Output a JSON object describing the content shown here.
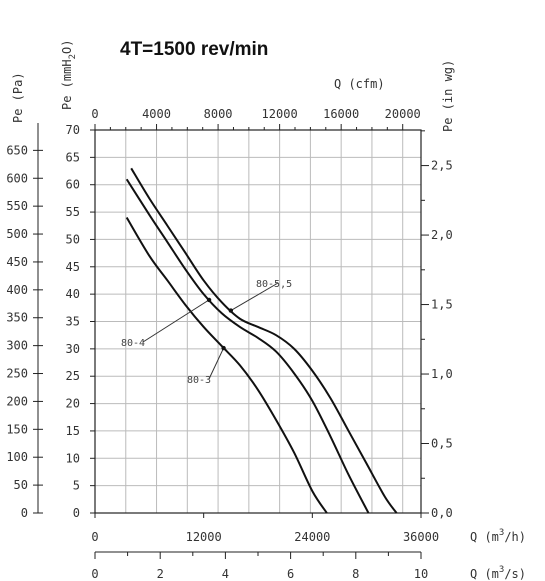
{
  "chart_data": {
    "type": "line",
    "title": "4T=1500 rev/min",
    "axes": {
      "pa": {
        "label": "Pe (Pa)",
        "range": [
          0,
          686.5
        ],
        "ticks": [
          0,
          50,
          100,
          150,
          200,
          250,
          300,
          350,
          400,
          450,
          500,
          550,
          600,
          650
        ]
      },
      "mmh2o": {
        "label_prefix": "Pe",
        "label_unit": "(mmH",
        "label_sub": "2",
        "label_end": "O)",
        "range": [
          0,
          70
        ],
        "ticks": [
          0,
          5,
          10,
          15,
          20,
          25,
          30,
          35,
          40,
          45,
          50,
          55,
          60,
          65,
          70
        ]
      },
      "inwg": {
        "label": "Pe (in wg)",
        "range": [
          0,
          2.756
        ],
        "ticks": [
          0.0,
          0.5,
          1.0,
          1.5,
          2.0,
          2.5
        ],
        "tick_labels": [
          "0,0",
          "0,5",
          "1,0",
          "1,5",
          "2,0",
          "2,5"
        ]
      },
      "m3h": {
        "label_prefix": "Q (m",
        "label_sup": "3",
        "label_end": "/h)",
        "range": [
          0,
          36000
        ],
        "ticks": [
          0,
          12000,
          24000,
          36000
        ]
      },
      "cfm": {
        "label": "Q (cfm)",
        "range": [
          0,
          21189
        ],
        "ticks": [
          0,
          4000,
          8000,
          12000,
          16000,
          20000
        ]
      },
      "m3s": {
        "label_prefix": "Q (m",
        "label_sup": "3",
        "label_end": "/s)",
        "range": [
          0,
          10
        ],
        "ticks": [
          0,
          2,
          4,
          6,
          8,
          10
        ]
      }
    },
    "grid": true,
    "series": [
      {
        "name": "80-3",
        "x": [
          3500,
          6000,
          8000,
          10000,
          12000,
          14000,
          16000,
          18000,
          20000,
          22000,
          24000,
          25600
        ],
        "y": [
          54,
          47,
          42.5,
          38,
          34,
          30.5,
          27,
          22.5,
          17,
          11,
          4,
          0
        ]
      },
      {
        "name": "80-4",
        "x": [
          3500,
          6000,
          8000,
          10000,
          12000,
          14000,
          16000,
          18000,
          20000,
          22000,
          24000,
          26000,
          28000,
          30200
        ],
        "y": [
          61,
          54.5,
          49.5,
          44.5,
          40,
          36.5,
          34,
          32,
          29.5,
          25.5,
          20.5,
          14,
          7,
          0
        ]
      },
      {
        "name": "80-5,5",
        "x": [
          4000,
          6000,
          8000,
          10000,
          12000,
          14000,
          16000,
          18000,
          20000,
          22000,
          24000,
          26000,
          28000,
          30000,
          32000,
          33300
        ],
        "y": [
          63,
          57.5,
          52.5,
          47.5,
          42.5,
          38.5,
          35.5,
          34,
          32.5,
          30,
          26,
          21,
          15,
          9,
          3,
          0
        ]
      }
    ]
  }
}
